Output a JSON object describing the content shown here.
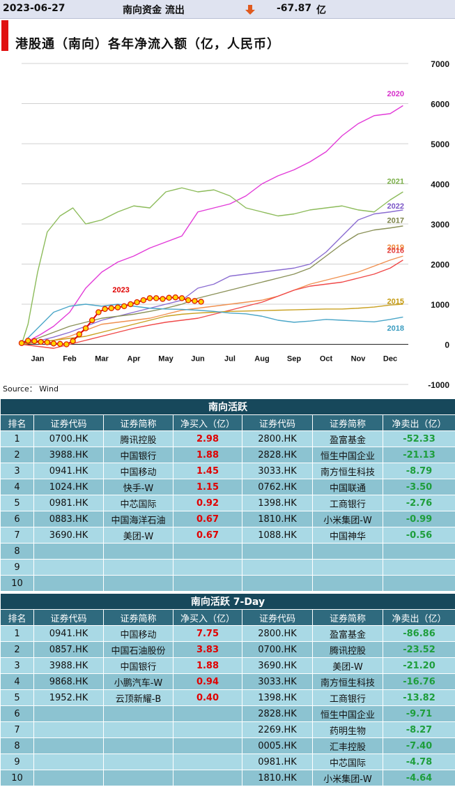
{
  "header": {
    "date": "2023-06-27",
    "label": "南向资金 流出",
    "value": "-67.87",
    "unit": "亿",
    "arrow_icon": "arrow-down-icon",
    "arrow_color": "#e05a1e"
  },
  "chart_title": "港股通（南向）各年净流入额（亿，人民币）",
  "source": "Source： Wind",
  "chart_data": {
    "type": "line",
    "x_axis_labels": [
      "Jan",
      "Feb",
      "Mar",
      "Apr",
      "May",
      "Jun",
      "Jul",
      "Aug",
      "Sep",
      "Oct",
      "Nov",
      "Dec"
    ],
    "y_axis_side": "right",
    "ylim": [
      -1000,
      7000
    ],
    "yticks": [
      -1000,
      0,
      1000,
      2000,
      3000,
      4000,
      5000,
      6000,
      7000
    ],
    "grid": "horizontal",
    "series": [
      {
        "name": "2020",
        "color": "#e23ad8",
        "label_color": "#d62fcb",
        "x": [
          0,
          0.3,
          0.6,
          1,
          1.5,
          2,
          2.5,
          3,
          3.5,
          4,
          4.5,
          5,
          5.5,
          6,
          6.5,
          7,
          7.5,
          8,
          8.5,
          9,
          9.5,
          10,
          10.5,
          11,
          11.5,
          11.9
        ],
        "y": [
          0,
          120,
          250,
          450,
          800,
          1400,
          1800,
          2050,
          2200,
          2400,
          2550,
          2700,
          3300,
          3400,
          3500,
          3700,
          4000,
          4200,
          4350,
          4550,
          4800,
          5200,
          5500,
          5700,
          5750,
          5950
        ]
      },
      {
        "name": "2021",
        "color": "#8cbb5a",
        "label_color": "#7cb04a",
        "x": [
          0,
          0.2,
          0.5,
          0.8,
          1.2,
          1.6,
          2,
          2.5,
          3,
          3.5,
          4,
          4.5,
          5,
          5.5,
          6,
          6.5,
          7,
          7.5,
          8,
          8.5,
          9,
          9.5,
          10,
          10.5,
          11,
          11.5,
          11.9
        ],
        "y": [
          0,
          500,
          1800,
          2800,
          3200,
          3400,
          3000,
          3100,
          3300,
          3450,
          3400,
          3800,
          3900,
          3800,
          3850,
          3700,
          3400,
          3300,
          3200,
          3250,
          3350,
          3400,
          3450,
          3350,
          3300,
          3600,
          3800
        ]
      },
      {
        "name": "2022",
        "color": "#8a6cd1",
        "label_color": "#7a55c6",
        "x": [
          0,
          0.5,
          1,
          1.5,
          2,
          2.5,
          3,
          3.5,
          4,
          4.5,
          5,
          5.5,
          6,
          6.5,
          7,
          7.5,
          8,
          8.5,
          9,
          9.5,
          10,
          10.5,
          11,
          11.5,
          11.9
        ],
        "y": [
          0,
          80,
          180,
          300,
          450,
          600,
          700,
          800,
          900,
          1000,
          1100,
          1400,
          1500,
          1700,
          1750,
          1800,
          1850,
          1900,
          2000,
          2300,
          2700,
          3100,
          3250,
          3300,
          3350
        ]
      },
      {
        "name": "2017",
        "color": "#8a9158",
        "label_color": "#7b8247",
        "x": [
          0,
          0.5,
          1,
          1.5,
          2,
          2.5,
          3,
          3.5,
          4,
          4.5,
          5,
          5.5,
          6,
          6.5,
          7,
          7.5,
          8,
          8.5,
          9,
          9.5,
          10,
          10.5,
          11,
          11.5,
          11.9
        ],
        "y": [
          0,
          150,
          300,
          450,
          550,
          650,
          700,
          750,
          820,
          900,
          1000,
          1150,
          1250,
          1350,
          1450,
          1550,
          1650,
          1750,
          1900,
          2200,
          2500,
          2750,
          2850,
          2900,
          2950
        ]
      },
      {
        "name": "2019",
        "color": "#f09050",
        "label_color": "#ee8a3a",
        "x": [
          0,
          0.5,
          1,
          1.5,
          2,
          2.5,
          3,
          3.5,
          4,
          4.5,
          5,
          5.5,
          6,
          6.5,
          7,
          7.5,
          8,
          8.5,
          9,
          9.5,
          10,
          10.5,
          11,
          11.5,
          11.9
        ],
        "y": [
          0,
          50,
          100,
          200,
          350,
          500,
          550,
          600,
          650,
          750,
          850,
          900,
          950,
          1000,
          1050,
          1100,
          1200,
          1350,
          1500,
          1600,
          1700,
          1800,
          1950,
          2100,
          2200
        ]
      },
      {
        "name": "2016",
        "color": "#f04848",
        "label_color": "#e34040",
        "x": [
          0,
          0.5,
          1,
          1.5,
          2,
          2.5,
          3,
          3.5,
          4,
          4.5,
          5,
          5.5,
          6,
          6.5,
          7,
          7.5,
          8,
          8.5,
          9,
          9.5,
          10,
          10.5,
          11,
          11.5,
          11.9
        ],
        "y": [
          0,
          -50,
          -100,
          0,
          100,
          200,
          300,
          400,
          480,
          550,
          600,
          650,
          750,
          850,
          950,
          1050,
          1200,
          1350,
          1450,
          1500,
          1550,
          1650,
          1750,
          1900,
          2100
        ]
      },
      {
        "name": "2015",
        "color": "#c9a020",
        "label_color": "#c49a10",
        "x": [
          0,
          0.5,
          1,
          1.5,
          2,
          2.5,
          3,
          3.5,
          4,
          4.5,
          5,
          5.5,
          6,
          6.5,
          7,
          7.5,
          8,
          8.5,
          9,
          9.5,
          10,
          10.5,
          11,
          11.5,
          11.9
        ],
        "y": [
          0,
          50,
          100,
          150,
          200,
          300,
          400,
          500,
          600,
          700,
          750,
          780,
          800,
          820,
          830,
          840,
          850,
          860,
          870,
          880,
          880,
          900,
          930,
          980,
          1000
        ]
      },
      {
        "name": "2018",
        "color": "#4aa6c8",
        "label_color": "#3a9cc0",
        "x": [
          0,
          0.5,
          1,
          1.5,
          2,
          2.5,
          3,
          3.5,
          4,
          4.5,
          5,
          5.5,
          6,
          6.5,
          7,
          7.5,
          8,
          8.5,
          9,
          9.5,
          10,
          10.5,
          11,
          11.5,
          11.9
        ],
        "y": [
          0,
          400,
          800,
          950,
          1000,
          950,
          1000,
          950,
          900,
          880,
          870,
          850,
          820,
          780,
          760,
          700,
          600,
          550,
          580,
          620,
          600,
          580,
          560,
          620,
          680
        ]
      },
      {
        "name": "2023",
        "color": "#e00000",
        "label_color": "#e00000",
        "marker_fill": "#ffd400",
        "marker_stroke": "#e02000",
        "x": [
          0,
          0.2,
          0.4,
          0.6,
          0.8,
          1,
          1.2,
          1.4,
          1.6,
          1.8,
          2,
          2.2,
          2.4,
          2.6,
          2.8,
          3,
          3.2,
          3.4,
          3.6,
          3.8,
          4,
          4.2,
          4.4,
          4.6,
          4.8,
          5,
          5.2,
          5.4,
          5.6
        ],
        "y": [
          30,
          90,
          80,
          60,
          50,
          20,
          10,
          0,
          80,
          250,
          400,
          600,
          800,
          880,
          900,
          920,
          950,
          1000,
          1050,
          1100,
          1150,
          1150,
          1130,
          1160,
          1170,
          1150,
          1100,
          1080,
          1060
        ]
      }
    ]
  },
  "table1": {
    "caption": "南向活跃",
    "headers": [
      "排名",
      "证券代码",
      "证券简称",
      "净买入（亿）",
      "证券代码",
      "证券简称",
      "净卖出（亿）"
    ],
    "rows": [
      {
        "rank": "1",
        "buy_code": "0700.HK",
        "buy_name": "腾讯控股",
        "buy_val": "2.98",
        "sell_code": "2800.HK",
        "sell_name": "盈富基金",
        "sell_val": "-52.33"
      },
      {
        "rank": "2",
        "buy_code": "3988.HK",
        "buy_name": "中国银行",
        "buy_val": "1.88",
        "sell_code": "2828.HK",
        "sell_name": "恒生中国企业",
        "sell_val": "-21.13"
      },
      {
        "rank": "3",
        "buy_code": "0941.HK",
        "buy_name": "中国移动",
        "buy_val": "1.45",
        "sell_code": "3033.HK",
        "sell_name": "南方恒生科技",
        "sell_val": "-8.79"
      },
      {
        "rank": "4",
        "buy_code": "1024.HK",
        "buy_name": "快手-W",
        "buy_val": "1.15",
        "sell_code": "0762.HK",
        "sell_name": "中国联通",
        "sell_val": "-3.50"
      },
      {
        "rank": "5",
        "buy_code": "0981.HK",
        "buy_name": "中芯国际",
        "buy_val": "0.92",
        "sell_code": "1398.HK",
        "sell_name": "工商银行",
        "sell_val": "-2.76"
      },
      {
        "rank": "6",
        "buy_code": "0883.HK",
        "buy_name": "中国海洋石油",
        "buy_val": "0.67",
        "sell_code": "1810.HK",
        "sell_name": "小米集团-W",
        "sell_val": "-0.99"
      },
      {
        "rank": "7",
        "buy_code": "3690.HK",
        "buy_name": "美团-W",
        "buy_val": "0.67",
        "sell_code": "1088.HK",
        "sell_name": "中国神华",
        "sell_val": "-0.56"
      },
      {
        "rank": "8",
        "buy_code": "",
        "buy_name": "",
        "buy_val": "",
        "sell_code": "",
        "sell_name": "",
        "sell_val": ""
      },
      {
        "rank": "9",
        "buy_code": "",
        "buy_name": "",
        "buy_val": "",
        "sell_code": "",
        "sell_name": "",
        "sell_val": ""
      },
      {
        "rank": "10",
        "buy_code": "",
        "buy_name": "",
        "buy_val": "",
        "sell_code": "",
        "sell_name": "",
        "sell_val": ""
      }
    ]
  },
  "table2": {
    "caption": "南向活跃 7-Day",
    "headers": [
      "排名",
      "证券代码",
      "证券简称",
      "净买入（亿）",
      "证券代码",
      "证券简称",
      "净卖出（亿）"
    ],
    "rows": [
      {
        "rank": "1",
        "buy_code": "0941.HK",
        "buy_name": "中国移动",
        "buy_val": "7.75",
        "sell_code": "2800.HK",
        "sell_name": "盈富基金",
        "sell_val": "-86.86"
      },
      {
        "rank": "2",
        "buy_code": "0857.HK",
        "buy_name": "中国石油股份",
        "buy_val": "3.83",
        "sell_code": "0700.HK",
        "sell_name": "腾讯控股",
        "sell_val": "-23.52"
      },
      {
        "rank": "3",
        "buy_code": "3988.HK",
        "buy_name": "中国银行",
        "buy_val": "1.88",
        "sell_code": "3690.HK",
        "sell_name": "美团-W",
        "sell_val": "-21.20"
      },
      {
        "rank": "4",
        "buy_code": "9868.HK",
        "buy_name": "小鹏汽车-W",
        "buy_val": "0.94",
        "sell_code": "3033.HK",
        "sell_name": "南方恒生科技",
        "sell_val": "-16.76"
      },
      {
        "rank": "5",
        "buy_code": "1952.HK",
        "buy_name": "云顶新耀-B",
        "buy_val": "0.40",
        "sell_code": "1398.HK",
        "sell_name": "工商银行",
        "sell_val": "-13.82"
      },
      {
        "rank": "6",
        "buy_code": "",
        "buy_name": "",
        "buy_val": "",
        "sell_code": "2828.HK",
        "sell_name": "恒生中国企业",
        "sell_val": "-9.71"
      },
      {
        "rank": "7",
        "buy_code": "",
        "buy_name": "",
        "buy_val": "",
        "sell_code": "2269.HK",
        "sell_name": "药明生物",
        "sell_val": "-8.27"
      },
      {
        "rank": "8",
        "buy_code": "",
        "buy_name": "",
        "buy_val": "",
        "sell_code": "0005.HK",
        "sell_name": "汇丰控股",
        "sell_val": "-7.40"
      },
      {
        "rank": "9",
        "buy_code": "",
        "buy_name": "",
        "buy_val": "",
        "sell_code": "0981.HK",
        "sell_name": "中芯国际",
        "sell_val": "-4.78"
      },
      {
        "rank": "10",
        "buy_code": "",
        "buy_name": "",
        "buy_val": "",
        "sell_code": "1810.HK",
        "sell_name": "小米集团-W",
        "sell_val": "-4.64"
      }
    ]
  }
}
